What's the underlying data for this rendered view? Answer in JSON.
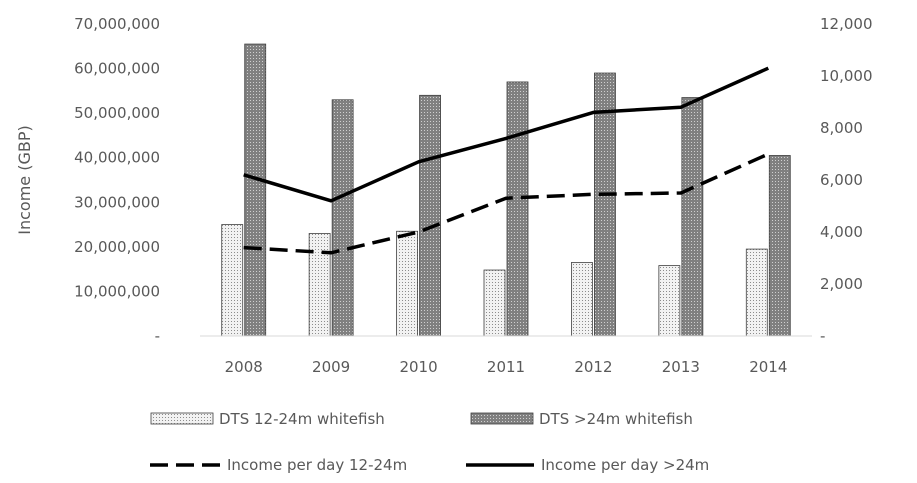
{
  "colors": {
    "text": "#595959",
    "bar_light_fill": "#f2f2f2",
    "bar_light_dot": "#8c8c8c",
    "bar_dark_fill": "#808080",
    "bar_dark_dot": "#d0d0d0",
    "bar_stroke": "#404040",
    "line": "#000000",
    "axis": "#d9d9d9"
  },
  "chart_data": {
    "type": "bar",
    "categories": [
      "2008",
      "2009",
      "2010",
      "2011",
      "2012",
      "2013",
      "2014"
    ],
    "ylabel": "Income (GBP)",
    "ylim": [
      0,
      70000000
    ],
    "y2lim": [
      0,
      12000
    ],
    "grid": false,
    "legend_placement": "bottom",
    "left_tick_values": [
      0,
      10000000,
      20000000,
      30000000,
      40000000,
      50000000,
      60000000,
      70000000
    ],
    "left_tick_labels": [
      "-",
      "10,000,000",
      "20,000,000",
      "30,000,000",
      "40,000,000",
      "50,000,000",
      "60,000,000",
      "70,000,000"
    ],
    "right_tick_values": [
      0,
      2000,
      4000,
      6000,
      8000,
      10000,
      12000
    ],
    "right_tick_labels": [
      "-",
      "2,000",
      "4,000",
      "6,000",
      "8,000",
      "10,000",
      "12,000"
    ],
    "series": [
      {
        "name": "DTS 12-24m whitefish",
        "type": "bar",
        "axis": "left",
        "style": "light-dotted",
        "values": [
          25000000,
          23000000,
          23500000,
          14800000,
          16500000,
          15800000,
          19500000
        ]
      },
      {
        "name": "DTS >24m whitefish",
        "type": "bar",
        "axis": "left",
        "style": "dark-dotted",
        "values": [
          65500000,
          53000000,
          54000000,
          57000000,
          59000000,
          53500000,
          40500000
        ]
      },
      {
        "name": "Income per day 12-24m",
        "type": "line",
        "axis": "right",
        "style": "dashed",
        "values": [
          3400,
          3200,
          4000,
          5300,
          5450,
          5500,
          7000
        ]
      },
      {
        "name": "Income per day >24m",
        "type": "line",
        "axis": "right",
        "style": "solid",
        "values": [
          6200,
          5200,
          6700,
          7600,
          8600,
          8800,
          10300
        ]
      }
    ]
  }
}
